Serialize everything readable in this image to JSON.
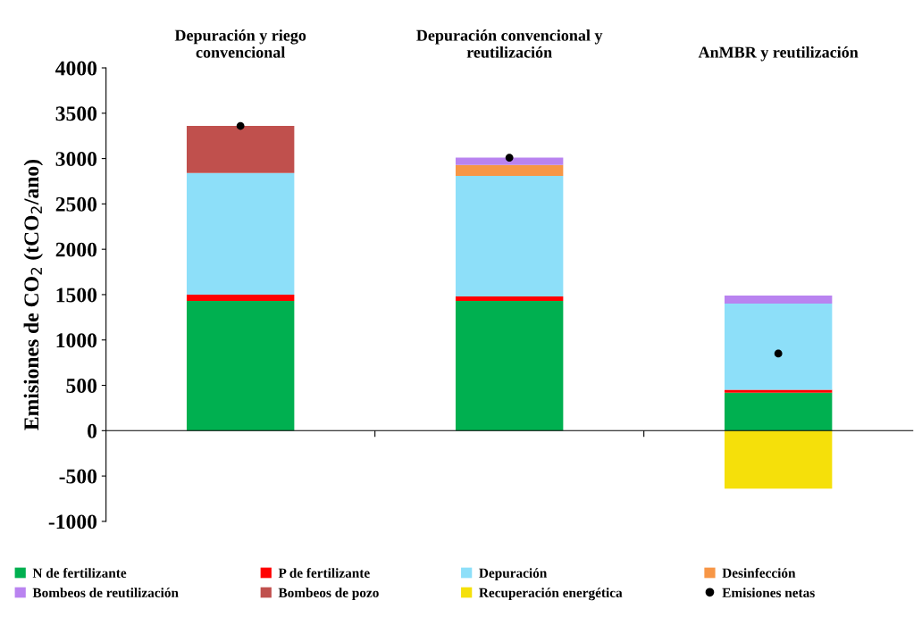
{
  "chart_data": {
    "type": "bar",
    "stacked": true,
    "categories": [
      "Depuración y riego\nconvencional",
      "Depuración convencional y\nreutilización",
      "AnMBR y reutilización"
    ],
    "ylabel": "Emisiones de CO$_{2}$ (tCO$_{2}$/ano)",
    "ylim": [
      -1000,
      4000
    ],
    "yticks": [
      -1000,
      -500,
      0,
      500,
      1000,
      1500,
      2000,
      2500,
      3000,
      3500,
      4000
    ],
    "legend": "bottom",
    "series": [
      {
        "name": "N de fertilizante",
        "color": "#00b050",
        "values": [
          1430,
          1430,
          420
        ]
      },
      {
        "name": "P de fertilizante",
        "color": "#ff0000",
        "values": [
          70,
          50,
          30
        ]
      },
      {
        "name": "Depuración",
        "color": "#8ddff9",
        "values": [
          1340,
          1330,
          950
        ]
      },
      {
        "name": "Desinfección",
        "color": "#f79646",
        "values": [
          null,
          120,
          null
        ]
      },
      {
        "name": "Bombeos de reutilización",
        "color": "#b983f0",
        "values": [
          null,
          80,
          90
        ]
      },
      {
        "name": "Bombeos de pozo",
        "color": "#c0504d",
        "values": [
          520,
          null,
          null
        ]
      },
      {
        "name": "Recuperación energética",
        "color": "#f5e00a",
        "values": [
          null,
          null,
          -640
        ]
      },
      {
        "name": "Emisiones netas",
        "color": "#000000",
        "type": "scatter",
        "marker": "circle",
        "x": [
          "Depuración y riego\nconvencional",
          "Depuración convencional y\nreutilización",
          "AnMBR y reutilización"
        ],
        "values": [
          3360,
          3010,
          850
        ]
      }
    ]
  }
}
